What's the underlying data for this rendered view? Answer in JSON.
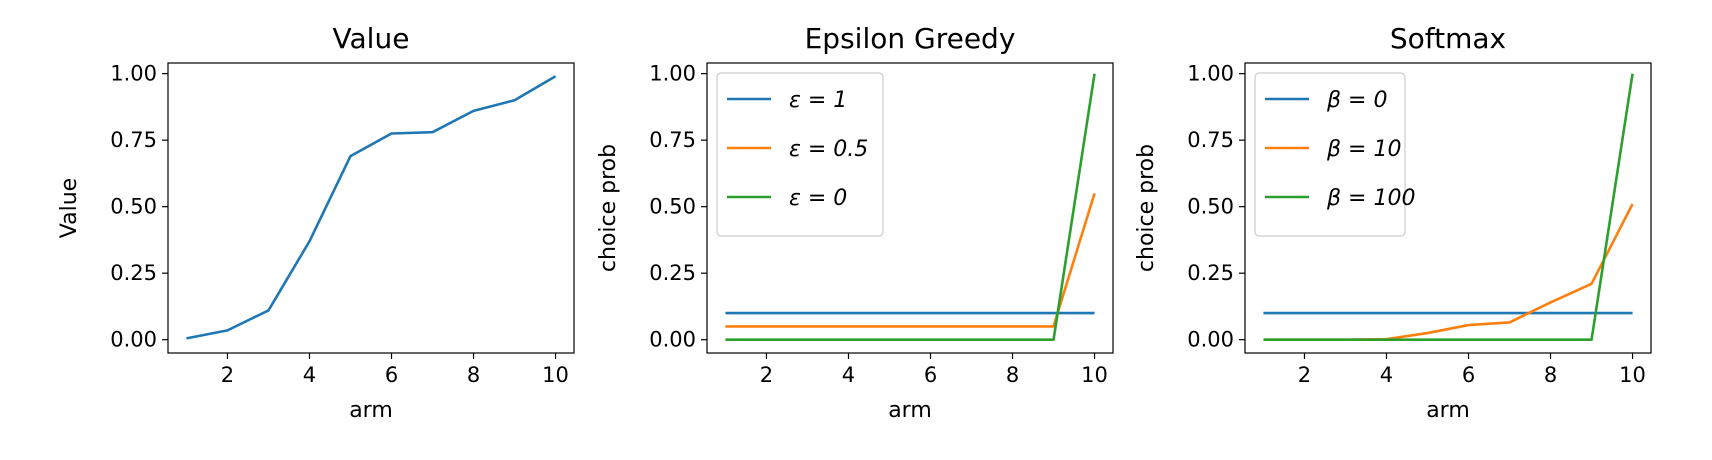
{
  "chart_data": [
    {
      "type": "line",
      "title": "Value",
      "xlabel": "arm",
      "ylabel": "Value",
      "xlim": [
        0.55,
        10.45
      ],
      "ylim": [
        -0.05,
        1.04
      ],
      "xticks": [
        2,
        4,
        6,
        8,
        10
      ],
      "yticks": [
        "0.00",
        "0.25",
        "0.50",
        "0.75",
        "1.00"
      ],
      "x": [
        1,
        2,
        3,
        4,
        5,
        6,
        7,
        8,
        9,
        10
      ],
      "series": [
        {
          "name": "",
          "color": "#1f77b4",
          "values": [
            0.005,
            0.035,
            0.11,
            0.37,
            0.69,
            0.775,
            0.78,
            0.86,
            0.9,
            0.99
          ]
        }
      ]
    },
    {
      "type": "line",
      "title": "Epsilon Greedy",
      "xlabel": "arm",
      "ylabel": "choice prob",
      "xlim": [
        0.55,
        10.45
      ],
      "ylim": [
        -0.05,
        1.04
      ],
      "xticks": [
        2,
        4,
        6,
        8,
        10
      ],
      "yticks": [
        "0.00",
        "0.25",
        "0.50",
        "0.75",
        "1.00"
      ],
      "x": [
        1,
        2,
        3,
        4,
        5,
        6,
        7,
        8,
        9,
        10
      ],
      "legend_position": "top-left",
      "series": [
        {
          "name": "ε = 1",
          "color": "#1f77b4",
          "values": [
            0.1,
            0.1,
            0.1,
            0.1,
            0.1,
            0.1,
            0.1,
            0.1,
            0.1,
            0.1
          ]
        },
        {
          "name": "ε = 0.5",
          "color": "#ff7f0e",
          "values": [
            0.05,
            0.05,
            0.05,
            0.05,
            0.05,
            0.05,
            0.05,
            0.05,
            0.05,
            0.55
          ]
        },
        {
          "name": "ε = 0",
          "color": "#2ca02c",
          "values": [
            0,
            0,
            0,
            0,
            0,
            0,
            0,
            0,
            0,
            1.0
          ]
        }
      ]
    },
    {
      "type": "line",
      "title": "Softmax",
      "xlabel": "arm",
      "ylabel": "choice prob",
      "xlim": [
        0.55,
        10.45
      ],
      "ylim": [
        -0.05,
        1.04
      ],
      "xticks": [
        2,
        4,
        6,
        8,
        10
      ],
      "yticks": [
        "0.00",
        "0.25",
        "0.50",
        "0.75",
        "1.00"
      ],
      "x": [
        1,
        2,
        3,
        4,
        5,
        6,
        7,
        8,
        9,
        10
      ],
      "legend_position": "top-left",
      "series": [
        {
          "name": "β = 0",
          "color": "#1f77b4",
          "values": [
            0.1,
            0.1,
            0.1,
            0.1,
            0.1,
            0.1,
            0.1,
            0.1,
            0.1,
            0.1
          ]
        },
        {
          "name": "β = 10",
          "color": "#ff7f0e",
          "values": [
            0,
            0,
            0,
            0.002,
            0.025,
            0.055,
            0.065,
            0.14,
            0.21,
            0.51
          ]
        },
        {
          "name": "β = 100",
          "color": "#2ca02c",
          "values": [
            0,
            0,
            0,
            0,
            0,
            0,
            0,
            0,
            0,
            1.0
          ]
        }
      ]
    }
  ]
}
